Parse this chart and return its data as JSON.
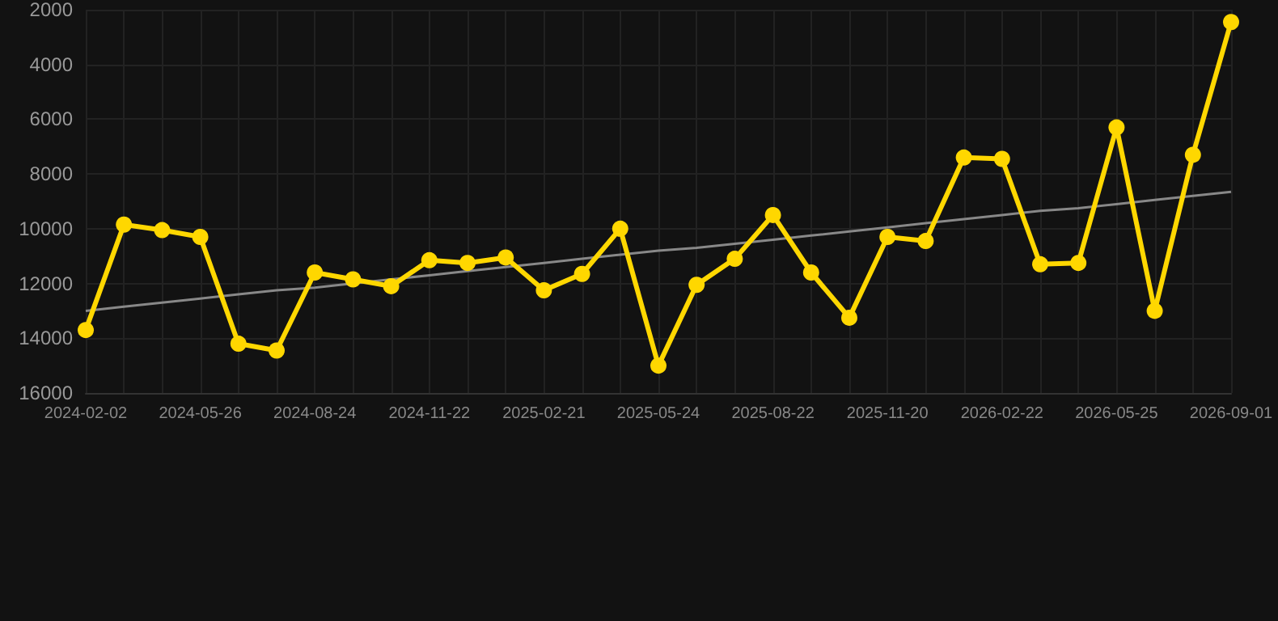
{
  "chart_data": {
    "type": "line",
    "categories": [
      "2024-02-02",
      null,
      null,
      "2024-05-26",
      null,
      null,
      "2024-08-24",
      null,
      null,
      "2024-11-22",
      null,
      null,
      "2025-02-21",
      null,
      null,
      "2025-05-24",
      null,
      null,
      "2025-08-22",
      null,
      null,
      "2025-11-20",
      null,
      null,
      "2026-02-22",
      null,
      null,
      "2026-05-25",
      null,
      null,
      "2026-09-01"
    ],
    "series": [
      {
        "color": "#ffd700",
        "marker": "circle",
        "values": [
          13700,
          9850,
          10050,
          10300,
          14200,
          14450,
          11600,
          11850,
          12100,
          11150,
          11250,
          11050,
          12250,
          11650,
          10000,
          15000,
          12050,
          11100,
          9500,
          11600,
          13250,
          10300,
          10450,
          7400,
          7450,
          11300,
          11250,
          6300,
          13000,
          7300,
          2450
        ]
      },
      {
        "type": "line",
        "color": "#888888",
        "marker": "none",
        "values": [
          13000,
          12850,
          12700,
          12550,
          12400,
          12250,
          12150,
          12000,
          11850,
          11700,
          11550,
          11400,
          11250,
          11100,
          10950,
          10800,
          10700,
          10550,
          10400,
          10250,
          10100,
          9950,
          9800,
          9650,
          9500,
          9350,
          9250,
          9100,
          8950,
          8800,
          8650
        ]
      }
    ],
    "ylim": [
      16000,
      2000
    ],
    "yticks": [
      2000,
      4000,
      6000,
      8000,
      10000,
      12000,
      14000,
      16000
    ],
    "grid": true
  }
}
